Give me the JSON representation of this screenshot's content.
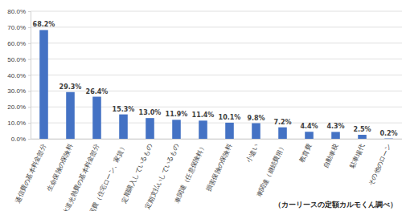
{
  "chart_data": {
    "type": "bar",
    "categories": [
      "通信費の基本料金部分",
      "生命保険の保険料",
      "水道光熱費の基本料金部分",
      "住居費（住宅ローン、家賃）",
      "定期購入しているもの",
      "定期支払いしているもの",
      "車関連（任意保険料）",
      "損害保険の保険料",
      "小遣い",
      "車関連（継続費用）",
      "教育費",
      "自動車税",
      "駐車場代",
      "その他のローン"
    ],
    "values": [
      68.2,
      29.3,
      26.4,
      15.3,
      13.0,
      11.9,
      11.4,
      10.1,
      9.8,
      7.2,
      4.4,
      4.3,
      2.5,
      0.2
    ],
    "value_labels": [
      "68.2%",
      "29.3%",
      "26.4%",
      "15.3%",
      "13.0%",
      "11.9%",
      "11.4%",
      "10.1%",
      "9.8%",
      "7.2%",
      "4.4%",
      "4.3%",
      "2.5%",
      "0.2%"
    ],
    "color": "#4472c4",
    "ylim": [
      0,
      80
    ],
    "yticks": [
      {
        "value": 0,
        "label": "0.0%"
      },
      {
        "value": 10,
        "label": "10.0%"
      },
      {
        "value": 20,
        "label": "20.0%"
      },
      {
        "value": 30,
        "label": "30.0%"
      },
      {
        "value": 40,
        "label": "40.0%"
      },
      {
        "value": 50,
        "label": "50.0%"
      },
      {
        "value": 60,
        "label": "60.0%"
      },
      {
        "value": 70,
        "label": "70.0%"
      },
      {
        "value": 80,
        "label": "80.0%"
      }
    ],
    "grid": true,
    "data_labels": true,
    "annotations": [
      "（カーリースの定額カルモくん調べ）"
    ]
  }
}
